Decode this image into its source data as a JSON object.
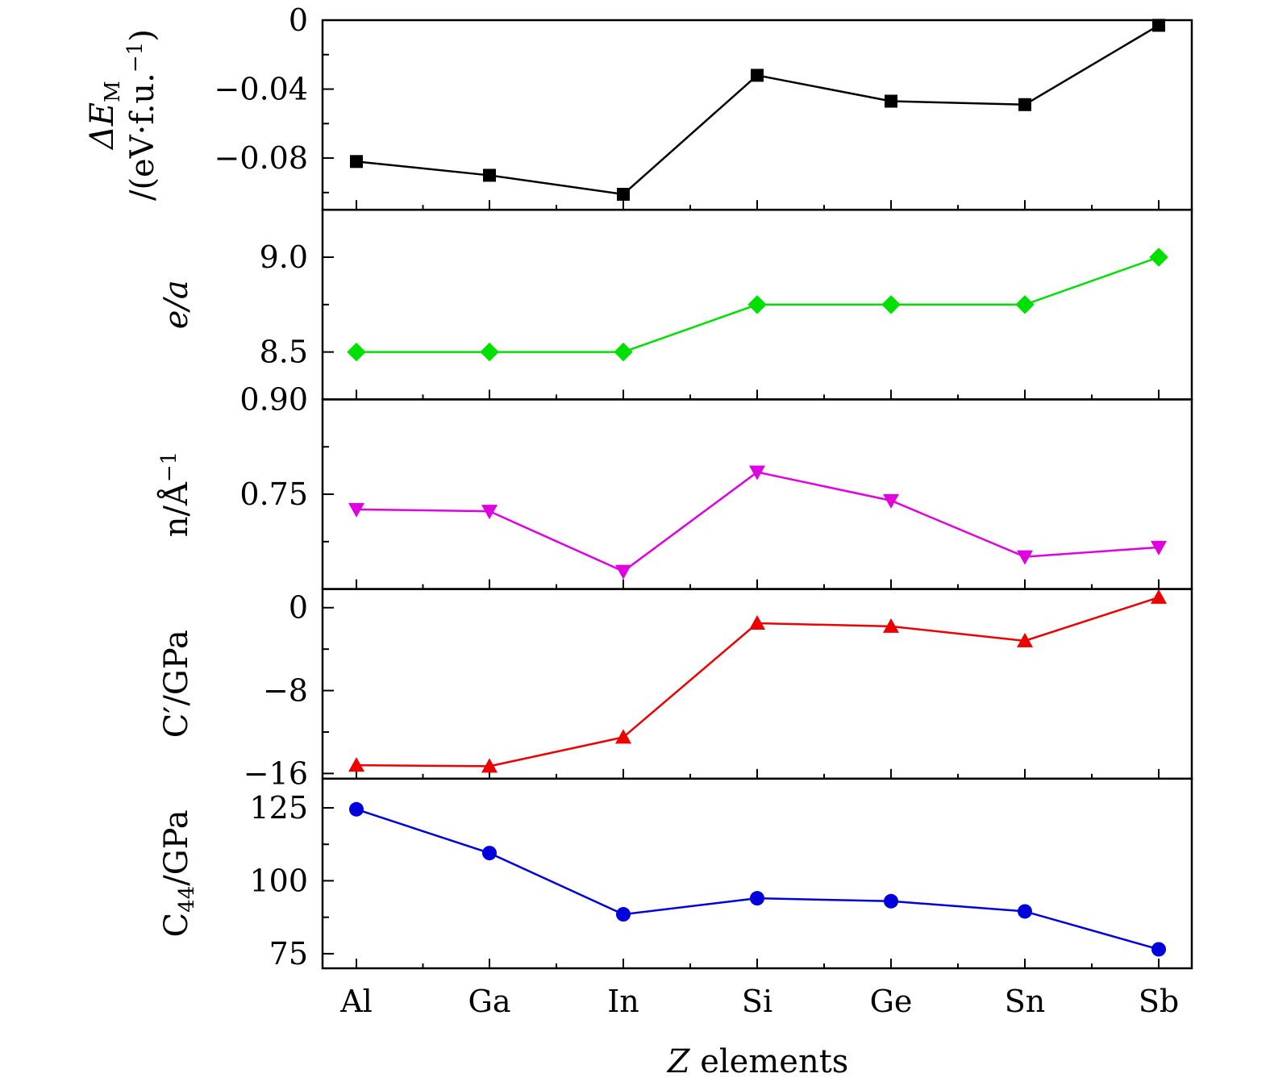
{
  "chart_data": {
    "type": "line",
    "categories": [
      "Al",
      "Ga",
      "In",
      "Si",
      "Ge",
      "Sn",
      "Sb"
    ],
    "xlabel": {
      "var": "Z",
      "rest": " elements"
    },
    "panels": [
      {
        "id": "delta-em",
        "ylabel_line1": {
          "main": "ΔE",
          "sub": "M"
        },
        "ylabel_line2": {
          "main": "/(eV·f.u.",
          "sup": "−1",
          "tail": ")"
        },
        "color": "#000000",
        "marker": "square",
        "ylim": [
          -0.11,
          0.0
        ],
        "yticks": [
          0,
          -0.04,
          -0.08
        ],
        "ytick_labels": [
          "0",
          "−0.04",
          "−0.08"
        ],
        "yminor": [
          -0.02,
          -0.06,
          -0.1
        ],
        "values": [
          -0.082,
          -0.09,
          -0.101,
          -0.032,
          -0.047,
          -0.049,
          -0.003
        ]
      },
      {
        "id": "e-over-a",
        "ylabel": "e/a",
        "color": "#00e000",
        "marker": "diamond",
        "ylim": [
          8.25,
          9.25
        ],
        "yticks": [
          8.5,
          9.0
        ],
        "ytick_labels": [
          "8.5",
          "9.0"
        ],
        "yminor": [
          8.75
        ],
        "values": [
          8.5,
          8.5,
          8.5,
          8.75,
          8.75,
          8.75,
          9.0
        ]
      },
      {
        "id": "n-density",
        "ylabel": {
          "main": "n/Å",
          "sup": "−1"
        },
        "color": "#e000e0",
        "marker": "triangle-down",
        "ylim": [
          0.6,
          0.9
        ],
        "yticks": [
          0.9,
          0.75
        ],
        "ytick_labels": [
          "0.90",
          "0.75"
        ],
        "yminor": [
          0.825,
          0.675
        ],
        "values": [
          0.726,
          0.723,
          0.628,
          0.785,
          0.74,
          0.651,
          0.666
        ]
      },
      {
        "id": "c-prime",
        "ylabel": {
          "main": "C′/GPa"
        },
        "color": "#ee0000",
        "marker": "triangle-up",
        "ylim": [
          -16.5,
          1.8
        ],
        "yticks": [
          0,
          -8,
          -16
        ],
        "ytick_labels": [
          "0",
          "−8",
          "−16"
        ],
        "yminor": [
          -4,
          -12
        ],
        "values": [
          -15.2,
          -15.3,
          -12.5,
          -1.5,
          -1.8,
          -3.2,
          1.0
        ]
      },
      {
        "id": "c44",
        "ylabel": {
          "main": "C",
          "sub": "44",
          "tail": "/GPa"
        },
        "color": "#0000dd",
        "marker": "circle",
        "ylim": [
          70,
          135
        ],
        "yticks": [
          125,
          100,
          75
        ],
        "ytick_labels": [
          "125",
          "100",
          "75"
        ],
        "yminor": [
          112.5,
          87.5
        ],
        "values": [
          124.5,
          109.5,
          88.5,
          94.0,
          93.0,
          89.5,
          76.5
        ]
      }
    ]
  }
}
